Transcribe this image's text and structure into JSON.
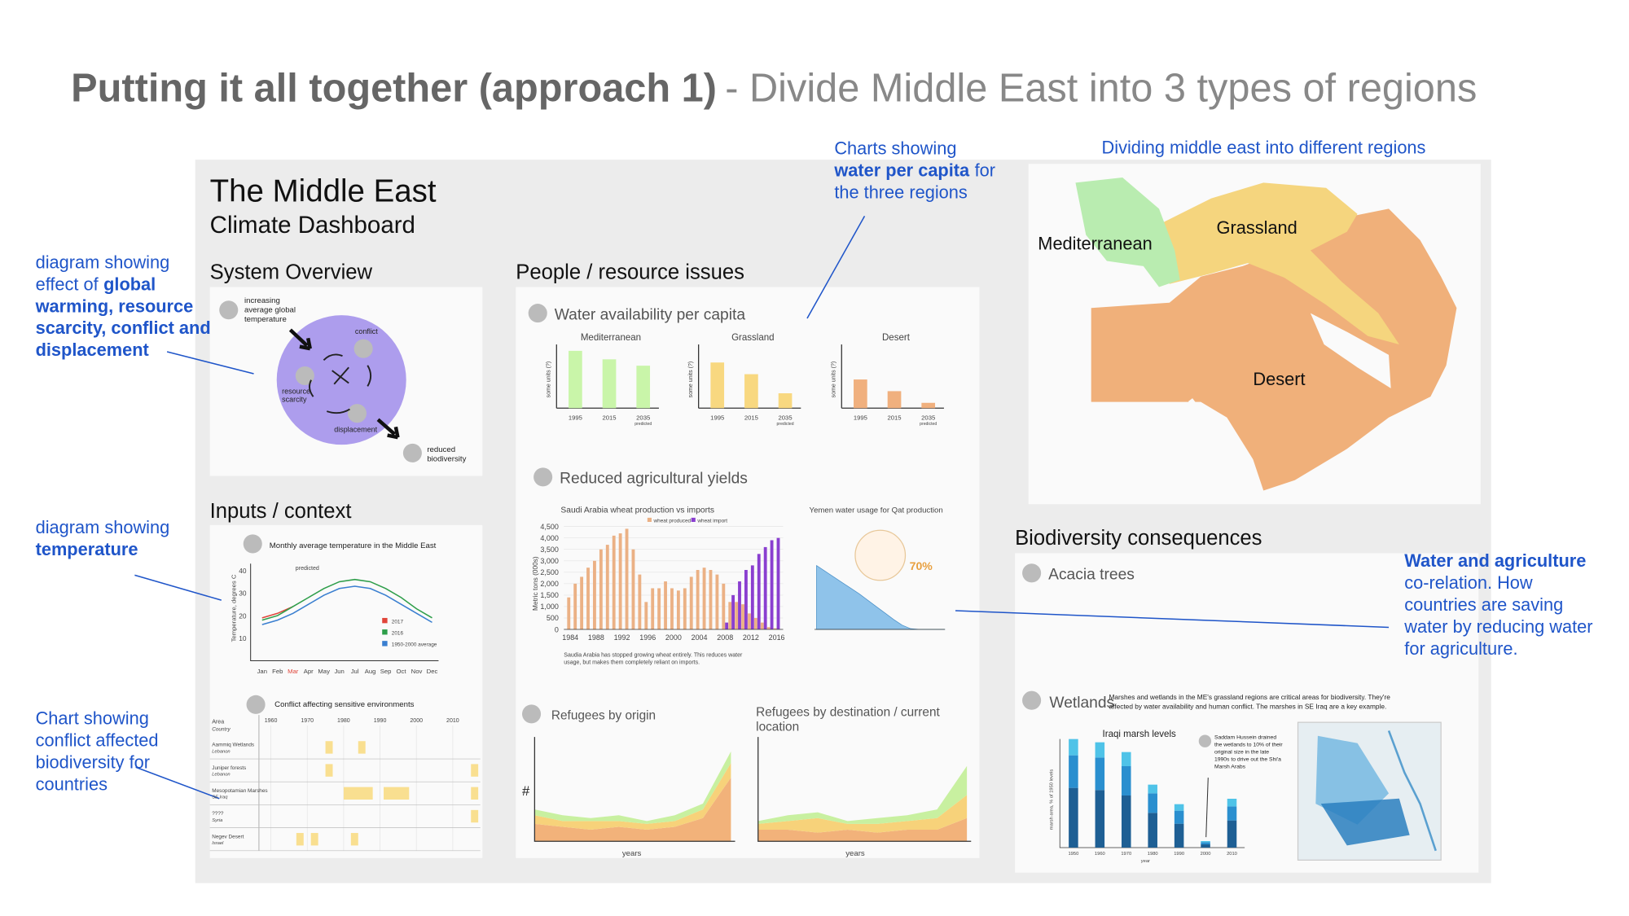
{
  "header": {
    "title": "Putting it all together (approach 1)",
    "subtitle": "- Divide Middle East into 3 types of regions"
  },
  "annotations": [
    {
      "lines": [
        [
          {
            "text": "diagram showing"
          }
        ],
        [
          {
            "text": "effect of"
          },
          {
            "text": "global",
            "bold": true
          }
        ],
        [
          {
            "text": "warming, resource",
            "bold": true
          }
        ],
        [
          {
            "text": "scarcity, conflict and",
            "bold": true
          }
        ],
        [
          {
            "text": "displacement",
            "bold": true
          }
        ]
      ]
    },
    {
      "lines": [
        [
          {
            "text": "diagram showing"
          }
        ],
        [
          {
            "text": "temperature",
            "bold": true
          }
        ]
      ]
    },
    {
      "lines": [
        [
          {
            "text": "Chart showing"
          }
        ],
        [
          {
            "text": "conflict affected"
          }
        ],
        [
          {
            "text": "biodiversity for"
          }
        ],
        [
          {
            "text": "countries"
          }
        ]
      ]
    },
    {
      "lines": [
        [
          {
            "text": "Charts showing"
          }
        ],
        [
          {
            "text": "water per capita",
            "bold": true
          },
          {
            "text": "for"
          }
        ],
        [
          {
            "text": "the three regions"
          }
        ]
      ]
    },
    {
      "lines": [
        [
          {
            "text": "Dividing middle east into different regions"
          }
        ]
      ]
    },
    {
      "lines": [
        [
          {
            "text": "Water and agriculture",
            "bold": true
          }
        ],
        [
          {
            "text": "co-relation. How"
          }
        ],
        [
          {
            "text": "countries are saving"
          }
        ],
        [
          {
            "text": "water by reducing water"
          }
        ],
        [
          {
            "text": "for agriculture."
          }
        ]
      ]
    }
  ],
  "dashboard": {
    "title": "The Middle East",
    "subtitle": "Climate Dashboard",
    "system": {
      "heading": "System Overview",
      "temperature": [
        "increasing",
        "average global",
        "temperature"
      ],
      "conflict": "conflict",
      "scarcity": [
        "resource",
        "scarcity"
      ],
      "displacement": "displacement",
      "biodiversity": [
        "reduced",
        "biodiversity"
      ]
    },
    "inputs": {
      "heading": "Inputs / context",
      "temperature": {
        "title": "Monthly average temperature in the Middle East",
        "ylabel": "Temperature, degrees C",
        "annotation": "predicted",
        "categories": [
          "Jan",
          "Feb",
          "Mar",
          "Apr",
          "May",
          "Jun",
          "Jul",
          "Aug",
          "Sep",
          "Oct",
          "Nov",
          "Dec"
        ],
        "ylim": [
          0,
          43
        ],
        "yticks": [
          10,
          20,
          30,
          40
        ],
        "series": [
          {
            "name": "2017",
            "color": "#e0453a",
            "values": [
              19,
              21,
              24,
              null,
              null,
              null,
              null,
              null,
              null,
              null,
              null,
              null
            ]
          },
          {
            "name": "2016",
            "color": "#2e9e4a",
            "values": [
              18,
              20,
              24,
              28,
              32,
              35,
              36,
              35,
              32,
              28,
              23,
              19
            ]
          },
          {
            "name": "1950-2000 average",
            "color": "#3a7fd0",
            "values": [
              16,
              18,
              21,
              25,
              29,
              32,
              33,
              32,
              29,
              25,
              21,
              17
            ]
          }
        ]
      },
      "conflict": {
        "title": "Conflict affecting sensitive environments",
        "area_label": "Area",
        "country_label": "Country",
        "xlim": [
          1955,
          2017
        ],
        "xticks": [
          1960,
          1970,
          1980,
          1990,
          2000,
          2010
        ],
        "rows": [
          {
            "area": "Aammiq Wetlands",
            "country": "Lebanon",
            "spans": [
              [
                1975,
                1977
              ],
              [
                1984,
                1986
              ]
            ]
          },
          {
            "area": "Juniper forests",
            "country": "Lebanon",
            "spans": [
              [
                1975,
                1977
              ],
              [
                2015,
                2017
              ]
            ]
          },
          {
            "area": "Mesopotamian Marshes",
            "country": "SE Iraq",
            "spans": [
              [
                1980,
                1988
              ],
              [
                1991,
                1998
              ],
              [
                2015,
                2017
              ]
            ]
          },
          {
            "area": "????",
            "country": "Syria",
            "spans": [
              [
                2015,
                2017
              ]
            ]
          },
          {
            "area": "Negev Desert",
            "country": "Israel",
            "spans": [
              [
                1967,
                1969
              ],
              [
                1971,
                1973
              ],
              [
                1982,
                1984
              ]
            ]
          }
        ]
      }
    },
    "people": {
      "heading": "People / resource issues",
      "water": {
        "title": "Water availability per capita",
        "ylabel": "some units (?)",
        "note": "predicted",
        "categories": [
          "1995",
          "2015",
          "2035"
        ],
        "ylim": [
          0,
          60
        ],
        "charts": [
          {
            "title": "Mediterranean",
            "color": "#c9f5a9",
            "values": [
              54,
              46,
              40
            ]
          },
          {
            "title": "Grassland",
            "color": "#f8d880",
            "values": [
              43,
              32,
              14
            ]
          },
          {
            "title": "Desert",
            "color": "#f0b07e",
            "values": [
              27,
              16,
              5
            ]
          }
        ]
      },
      "yields": {
        "title": "Reduced agricultural yields",
        "wheat": {
          "title": "Saudi Arabia wheat production vs imports",
          "ylabel": "Metric tons (000s)",
          "note": [
            "Saudia Arabia has stopped growing wheat entirely. This reduces water",
            "usage, but makes them completely reliant on imports."
          ],
          "xlim": [
            1983,
            2017
          ],
          "xticks": [
            1984,
            1988,
            1992,
            1996,
            2000,
            2004,
            2008,
            2012,
            2016
          ],
          "ylim": [
            0,
            4700
          ],
          "yticks": [
            0,
            500,
            {
              "value": 1000,
              "label": "1,000"
            },
            {
              "value": 1500,
              "label": "1,500"
            },
            {
              "value": 2000,
              "label": "2,000"
            },
            {
              "value": 2500,
              "label": "2,500"
            },
            {
              "value": 3000,
              "label": "3,000"
            },
            {
              "value": 3500,
              "label": "3,500"
            },
            {
              "value": 4000,
              "label": "4,000"
            },
            {
              "value": 4500,
              "label": "4,500"
            }
          ],
          "x": [
            1984,
            1985,
            1986,
            1987,
            1988,
            1989,
            1990,
            1991,
            1992,
            1993,
            1994,
            1995,
            1996,
            1997,
            1998,
            1999,
            2000,
            2001,
            2002,
            2003,
            2004,
            2005,
            2006,
            2007,
            2008,
            2009,
            2010,
            2011,
            2012,
            2013,
            2014,
            2015,
            2016
          ],
          "series": [
            {
              "name": "wheat produced",
              "color": "#ebb185",
              "values": [
                1400,
                2000,
                2300,
                2700,
                3000,
                3500,
                3700,
                4100,
                4200,
                4400,
                3500,
                2400,
                1200,
                1800,
                1800,
                2100,
                1800,
                1700,
                1800,
                2300,
                2600,
                2700,
                2600,
                2400,
                2000,
                1200,
                1200,
                1100,
                700,
                500,
                300,
                100,
                50
              ]
            },
            {
              "name": "wheat import",
              "color": "#8a3fd0",
              "values": [
                0,
                0,
                0,
                0,
                0,
                0,
                0,
                0,
                0,
                0,
                0,
                0,
                0,
                0,
                0,
                0,
                0,
                0,
                0,
                0,
                0,
                0,
                0,
                0,
                300,
                1500,
                2100,
                2600,
                2800,
                3300,
                3600,
                3900,
                4000
              ]
            }
          ]
        },
        "qat": {
          "title": "Yemen water usage for Qat production",
          "stat": "70%",
          "color": "#8fc3ea",
          "ylim": [
            0,
            10
          ],
          "values": [
            9,
            8.2,
            7.4,
            6.6,
            5.8,
            5,
            4.1,
            3.2,
            2.3,
            1.4,
            0.6,
            0.1,
            0,
            0,
            0,
            0
          ]
        }
      },
      "refugees": [
        {
          "title": [
            "Refugees by origin"
          ],
          "ylabel": "#",
          "xlabel": "years",
          "ylim": [
            0,
            36
          ],
          "series": [
            {
              "color": "#f2b27a",
              "values": [
                6,
                5,
                4,
                5,
                4,
                5,
                8,
                22
              ]
            },
            {
              "color": "#f7d27a",
              "values": [
                3,
                2,
                3,
                2,
                2,
                2,
                3,
                5
              ]
            },
            {
              "color": "#c8f0a0",
              "values": [
                2,
                2,
                1,
                2,
                1,
                2,
                2,
                4
              ]
            }
          ]
        },
        {
          "title": [
            "Refugees by destination / current",
            "location"
          ],
          "xlabel": "years",
          "ylim": [
            0,
            36
          ],
          "series": [
            {
              "color": "#f2b27a",
              "values": [
                4,
                4,
                3,
                4,
                3,
                4,
                4,
                8
              ]
            },
            {
              "color": "#f7d27a",
              "values": [
                2,
                3,
                5,
                2,
                3,
                3,
                4,
                8
              ]
            },
            {
              "color": "#c8f0a0",
              "values": [
                1,
                2,
                2,
                1,
                2,
                2,
                3,
                10
              ]
            }
          ]
        }
      ]
    },
    "biodiversity": {
      "heading": "Biodiversity consequences",
      "acacia": "Acacia trees",
      "wetlands": "Wetlands",
      "text": [
        "Marshes and wetlands in the ME's grassland regions are critical areas for biodiversity. They're",
        "affected by water availability and human conflict. The marshes in SE Iraq are a key example."
      ],
      "marsh": {
        "title": "Iraqi marsh levels",
        "ylabel": "marsh area, % of 1950 levels",
        "xlabel": "year",
        "note": [
          "Saddam Hussein drained",
          "the wetlands to 10% of their",
          "original size in the late",
          "1990s to drive out the Shi'a",
          "Marsh Arabs"
        ],
        "categories": [
          "1950",
          "1960",
          "1970",
          "1980",
          "1990",
          "2000",
          "2010"
        ],
        "ylim": [
          0,
          100
        ],
        "series": [
          {
            "color": "#1e5f94",
            "values": [
              55,
              53,
              48,
              32,
              22,
              3,
              25
            ]
          },
          {
            "color": "#2a8fcf",
            "values": [
              30,
              30,
              27,
              18,
              12,
              2,
              13
            ]
          },
          {
            "color": "#4fc3e8",
            "values": [
              15,
              14,
              13,
              8,
              6,
              1,
              7
            ]
          }
        ]
      }
    }
  },
  "map": {
    "title": "Dividing middle east into different regions",
    "labels": [
      "Mediterranean",
      "Grassland",
      "Desert"
    ]
  }
}
